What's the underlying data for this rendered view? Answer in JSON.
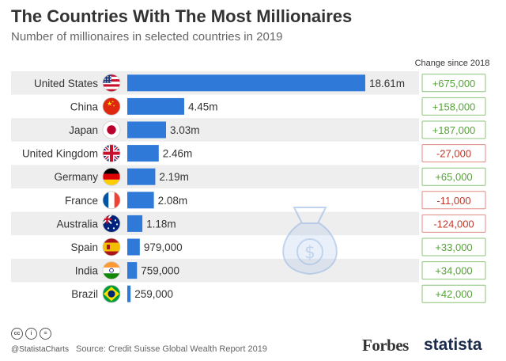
{
  "header": {
    "title": "The Countries With The Most Millionaires",
    "subtitle": "Number of millionaires in selected countries in 2019",
    "change_header": "Change since 2018"
  },
  "colors": {
    "bar": "#2f7ad9",
    "row_alt": "#eeeeee",
    "positive": "#57a33a",
    "negative": "#c0392b",
    "positive_border": "#8cc47a",
    "negative_border": "#e08a82",
    "watermark": "#8fb2e3"
  },
  "chart_data": {
    "type": "bar",
    "orientation": "horizontal",
    "title": "The Countries With The Most Millionaires",
    "subtitle": "Number of millionaires in selected countries in 2019",
    "categories": [
      "United States",
      "China",
      "Japan",
      "United Kingdom",
      "Germany",
      "France",
      "Australia",
      "Spain",
      "India",
      "Brazil"
    ],
    "values": [
      18610000,
      4450000,
      3030000,
      2460000,
      2190000,
      2080000,
      1180000,
      979000,
      759000,
      259000
    ],
    "value_labels": [
      "18.61m",
      "4.45m",
      "3.03m",
      "2.46m",
      "2.19m",
      "2.08m",
      "1.18m",
      "979,000",
      "759,000",
      "259,000"
    ],
    "changes_since_2018": [
      675000,
      158000,
      187000,
      -27000,
      65000,
      -11000,
      -124000,
      33000,
      34000,
      42000
    ],
    "change_labels": [
      "+675,000",
      "+158,000",
      "+187,000",
      "-27,000",
      "+65,000",
      "-11,000",
      "-124,000",
      "+33,000",
      "+34,000",
      "+42,000"
    ],
    "flag_icons": [
      "us-flag-icon",
      "china-flag-icon",
      "japan-flag-icon",
      "uk-flag-icon",
      "germany-flag-icon",
      "france-flag-icon",
      "australia-flag-icon",
      "spain-flag-icon",
      "india-flag-icon",
      "brazil-flag-icon"
    ],
    "xlim": [
      0,
      18610000
    ],
    "grid": false,
    "legend": "none"
  },
  "footer": {
    "handle": "@StatistaCharts",
    "source": "Source: Credit Suisse Global Wealth Report 2019",
    "icons": [
      "cc-icon",
      "by-icon",
      "equals-icon"
    ],
    "cc_glyphs": [
      "cc",
      "i",
      "="
    ],
    "forbes_logo": "Forbes",
    "statista_logo": "statista"
  }
}
